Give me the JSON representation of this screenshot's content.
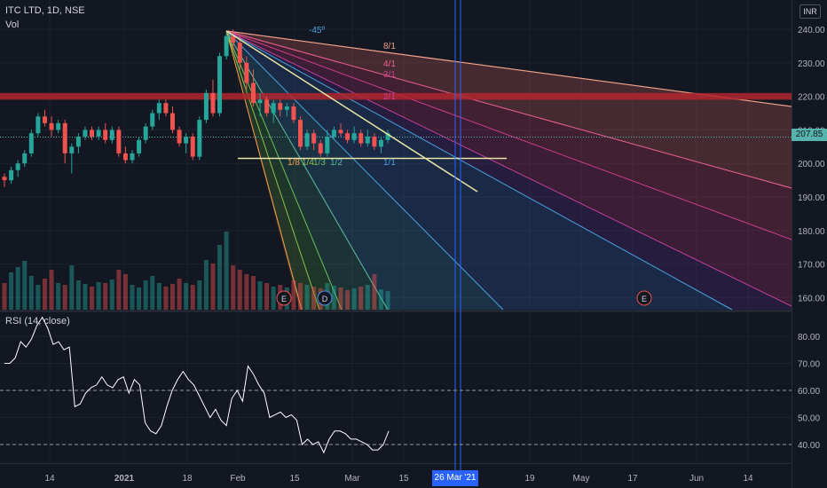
{
  "header": {
    "symbol": "ITC LTD, 1D, NSE",
    "volume_label": "Vol",
    "currency": "INR",
    "rsi_label": "RSI (14, close)",
    "current_price": "207.85",
    "crosshair_date": "26 Mar '21"
  },
  "colors": {
    "background": "#131722",
    "up": "#26a69a",
    "down": "#ef5350",
    "resistance_band": "#b2262e",
    "header_band": "#1a7a3a",
    "crosshair": "#2962ff",
    "rsi_line": "#ffffff"
  },
  "chart_data": [
    {
      "type": "candlestick",
      "title": "ITC LTD, 1D, NSE",
      "y_axis_ticks": [
        160,
        170,
        180,
        190,
        200,
        210,
        220,
        230,
        240
      ],
      "ylim": [
        157,
        243
      ],
      "x_tick_labels": [
        "14",
        "2021",
        "18",
        "Feb",
        "15",
        "Mar",
        "15",
        "26 Mar '21",
        "19",
        "May",
        "17",
        "Jun",
        "14"
      ],
      "candles": [
        {
          "o": 196,
          "h": 197,
          "l": 193,
          "c": 195
        },
        {
          "o": 195,
          "h": 199,
          "l": 194,
          "c": 198
        },
        {
          "o": 198,
          "h": 201,
          "l": 196,
          "c": 200
        },
        {
          "o": 200,
          "h": 204,
          "l": 199,
          "c": 203
        },
        {
          "o": 203,
          "h": 210,
          "l": 202,
          "c": 209
        },
        {
          "o": 209,
          "h": 215,
          "l": 208,
          "c": 214
        },
        {
          "o": 214,
          "h": 216,
          "l": 211,
          "c": 212
        },
        {
          "o": 212,
          "h": 214,
          "l": 208,
          "c": 210
        },
        {
          "o": 210,
          "h": 213,
          "l": 209,
          "c": 212
        },
        {
          "o": 212,
          "h": 213,
          "l": 200,
          "c": 203
        },
        {
          "o": 203,
          "h": 206,
          "l": 197,
          "c": 205
        },
        {
          "o": 205,
          "h": 209,
          "l": 203,
          "c": 208
        },
        {
          "o": 208,
          "h": 211,
          "l": 207,
          "c": 210
        },
        {
          "o": 210,
          "h": 211,
          "l": 207,
          "c": 208
        },
        {
          "o": 208,
          "h": 211,
          "l": 207,
          "c": 210
        },
        {
          "o": 210,
          "h": 212,
          "l": 206,
          "c": 207
        },
        {
          "o": 207,
          "h": 211,
          "l": 206,
          "c": 210
        },
        {
          "o": 210,
          "h": 211,
          "l": 202,
          "c": 203
        },
        {
          "o": 203,
          "h": 205,
          "l": 200,
          "c": 201
        },
        {
          "o": 201,
          "h": 204,
          "l": 200,
          "c": 203
        },
        {
          "o": 203,
          "h": 208,
          "l": 202,
          "c": 207
        },
        {
          "o": 207,
          "h": 212,
          "l": 206,
          "c": 211
        },
        {
          "o": 211,
          "h": 216,
          "l": 210,
          "c": 215
        },
        {
          "o": 215,
          "h": 219,
          "l": 213,
          "c": 218
        },
        {
          "o": 218,
          "h": 219,
          "l": 214,
          "c": 215
        },
        {
          "o": 215,
          "h": 217,
          "l": 209,
          "c": 210
        },
        {
          "o": 210,
          "h": 211,
          "l": 205,
          "c": 206
        },
        {
          "o": 206,
          "h": 209,
          "l": 203,
          "c": 208
        },
        {
          "o": 208,
          "h": 209,
          "l": 201,
          "c": 202
        },
        {
          "o": 202,
          "h": 214,
          "l": 201,
          "c": 213
        },
        {
          "o": 213,
          "h": 222,
          "l": 212,
          "c": 221
        },
        {
          "o": 221,
          "h": 225,
          "l": 214,
          "c": 215
        },
        {
          "o": 215,
          "h": 233,
          "l": 214,
          "c": 232
        },
        {
          "o": 232,
          "h": 239,
          "l": 231,
          "c": 238
        },
        {
          "o": 238,
          "h": 240,
          "l": 234,
          "c": 236
        },
        {
          "o": 236,
          "h": 238,
          "l": 228,
          "c": 230
        },
        {
          "o": 230,
          "h": 232,
          "l": 222,
          "c": 224
        },
        {
          "o": 224,
          "h": 228,
          "l": 217,
          "c": 218
        },
        {
          "o": 218,
          "h": 221,
          "l": 214,
          "c": 219
        },
        {
          "o": 219,
          "h": 220,
          "l": 214,
          "c": 215
        },
        {
          "o": 215,
          "h": 219,
          "l": 212,
          "c": 218
        },
        {
          "o": 218,
          "h": 219,
          "l": 214,
          "c": 216
        },
        {
          "o": 216,
          "h": 218,
          "l": 214,
          "c": 217
        },
        {
          "o": 217,
          "h": 218,
          "l": 212,
          "c": 213
        },
        {
          "o": 213,
          "h": 214,
          "l": 204,
          "c": 205
        },
        {
          "o": 205,
          "h": 210,
          "l": 204,
          "c": 209
        },
        {
          "o": 209,
          "h": 210,
          "l": 204,
          "c": 206
        },
        {
          "o": 206,
          "h": 207,
          "l": 202,
          "c": 203
        },
        {
          "o": 203,
          "h": 210,
          "l": 202,
          "c": 208
        },
        {
          "o": 208,
          "h": 211,
          "l": 207,
          "c": 210
        },
        {
          "o": 210,
          "h": 212,
          "l": 208,
          "c": 209
        },
        {
          "o": 209,
          "h": 210,
          "l": 206,
          "c": 207
        },
        {
          "o": 207,
          "h": 211,
          "l": 206,
          "c": 209
        },
        {
          "o": 209,
          "h": 210,
          "l": 205,
          "c": 206
        },
        {
          "o": 206,
          "h": 210,
          "l": 205,
          "c": 208
        },
        {
          "o": 208,
          "h": 209,
          "l": 204,
          "c": 205
        },
        {
          "o": 205,
          "h": 208,
          "l": 203,
          "c": 207
        },
        {
          "o": 207,
          "h": 210,
          "l": 206,
          "c": 209
        }
      ],
      "volume": [
        30,
        42,
        48,
        55,
        38,
        28,
        35,
        45,
        30,
        28,
        50,
        33,
        29,
        26,
        31,
        30,
        34,
        45,
        40,
        28,
        25,
        33,
        38,
        30,
        26,
        29,
        35,
        30,
        28,
        33,
        56,
        52,
        73,
        88,
        50,
        45,
        40,
        38,
        32,
        30,
        26,
        28,
        25,
        33,
        30,
        28,
        26,
        24,
        30,
        27,
        25,
        22,
        24,
        26,
        28,
        40,
        23,
        21
      ],
      "event_markers": [
        {
          "letter": "E",
          "bar": 35
        },
        {
          "letter": "D",
          "bar": 40
        },
        {
          "letter": "E",
          "bar": 82
        }
      ],
      "resistance_band": [
        219,
        221
      ],
      "support_line": 201.5,
      "fan_origin": {
        "bar": 33,
        "price": 239.5
      },
      "fan_labels": [
        "-45º",
        "8/1",
        "4/1",
        "3/1",
        "2/1",
        "1/8",
        "1/4",
        "1/3",
        "1/2",
        "1/1"
      ]
    },
    {
      "type": "line",
      "title": "RSI (14, close)",
      "y_axis_ticks": [
        40,
        50,
        60,
        70,
        80
      ],
      "ylim": [
        33,
        87
      ],
      "levels": [
        60,
        40
      ],
      "values": [
        70,
        70,
        72,
        78,
        76,
        79,
        84,
        87,
        83,
        77,
        78,
        75,
        76,
        54,
        55,
        59,
        61,
        62,
        65,
        62,
        61,
        64,
        65,
        59,
        64,
        62,
        48,
        45,
        44,
        47,
        54,
        60,
        64,
        67,
        64,
        62,
        58,
        54,
        50,
        53,
        49,
        47,
        57,
        60,
        56,
        69,
        66,
        62,
        59,
        50,
        51,
        52,
        50,
        51,
        49,
        40,
        42,
        40,
        41,
        37,
        42,
        45,
        45,
        44,
        42,
        42,
        41,
        40,
        38,
        38,
        40,
        45
      ]
    }
  ]
}
